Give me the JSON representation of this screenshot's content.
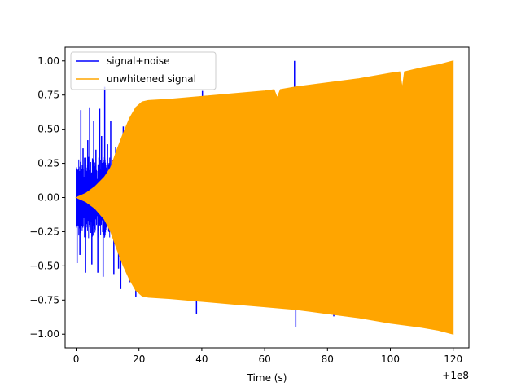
{
  "chart_data": {
    "type": "line",
    "title": "",
    "xlabel": "Time (s)",
    "ylabel": "",
    "x_offset_label": "+1e8",
    "xlim": [
      -3.5,
      125
    ],
    "ylim": [
      -1.1,
      1.1
    ],
    "x_ticks": [
      0,
      20,
      40,
      60,
      80,
      100,
      120
    ],
    "y_ticks": [
      -1.0,
      -0.75,
      -0.5,
      -0.25,
      0.0,
      0.25,
      0.5,
      0.75,
      1.0
    ],
    "x_tick_labels": [
      "0",
      "20",
      "40",
      "60",
      "80",
      "100",
      "120"
    ],
    "y_tick_labels": [
      "−1.00",
      "−0.75",
      "−0.50",
      "−0.25",
      "0.00",
      "0.25",
      "0.50",
      "0.75",
      "1.00"
    ],
    "grid": false,
    "legend": {
      "position": "top-left"
    },
    "series": [
      {
        "name": "signal+noise",
        "color": "#0000ff",
        "spikes": [
          {
            "x": 0.3,
            "y": -0.48
          },
          {
            "x": 0.6,
            "y": 0.18
          },
          {
            "x": 1.2,
            "y": -0.42
          },
          {
            "x": 1.5,
            "y": 0.64
          },
          {
            "x": 2.2,
            "y": 0.36
          },
          {
            "x": 3.0,
            "y": -0.55
          },
          {
            "x": 3.7,
            "y": 0.42
          },
          {
            "x": 4.3,
            "y": 0.66
          },
          {
            "x": 5.0,
            "y": -0.49
          },
          {
            "x": 5.6,
            "y": 0.56
          },
          {
            "x": 6.3,
            "y": 0.35
          },
          {
            "x": 6.9,
            "y": -0.55
          },
          {
            "x": 7.5,
            "y": 0.65
          },
          {
            "x": 8.1,
            "y": 0.45
          },
          {
            "x": 8.6,
            "y": -0.58
          },
          {
            "x": 9.1,
            "y": 0.81
          },
          {
            "x": 10.0,
            "y": 0.39
          },
          {
            "x": 11.0,
            "y": 0.56
          },
          {
            "x": 12.0,
            "y": -0.56
          },
          {
            "x": 12.6,
            "y": 0.37
          },
          {
            "x": 13.5,
            "y": -0.52
          },
          {
            "x": 14.2,
            "y": -0.67
          },
          {
            "x": 15.0,
            "y": 0.52
          },
          {
            "x": 16.0,
            "y": 0.47
          },
          {
            "x": 17.0,
            "y": -0.62
          },
          {
            "x": 18.0,
            "y": 0.45
          },
          {
            "x": 19.0,
            "y": -0.73
          },
          {
            "x": 38.3,
            "y": -0.85
          },
          {
            "x": 40.2,
            "y": 0.78
          },
          {
            "x": 69.5,
            "y": 1.0
          },
          {
            "x": 69.9,
            "y": -0.95
          },
          {
            "x": 82.0,
            "y": -0.87
          }
        ],
        "noise_band": {
          "x_start": 0,
          "x_end": 12,
          "amplitude": 0.3
        }
      },
      {
        "name": "unwhitened signal",
        "color": "#ffa500",
        "envelope_upper": [
          {
            "x": 0,
            "y": 0.0
          },
          {
            "x": 3,
            "y": 0.03
          },
          {
            "x": 6,
            "y": 0.08
          },
          {
            "x": 9,
            "y": 0.15
          },
          {
            "x": 11,
            "y": 0.22
          },
          {
            "x": 13,
            "y": 0.35
          },
          {
            "x": 15,
            "y": 0.47
          },
          {
            "x": 17,
            "y": 0.58
          },
          {
            "x": 19,
            "y": 0.66
          },
          {
            "x": 21,
            "y": 0.7
          },
          {
            "x": 23,
            "y": 0.71
          },
          {
            "x": 30,
            "y": 0.72
          },
          {
            "x": 40,
            "y": 0.74
          },
          {
            "x": 50,
            "y": 0.76
          },
          {
            "x": 60,
            "y": 0.78
          },
          {
            "x": 63,
            "y": 0.79
          },
          {
            "x": 64,
            "y": 0.73
          },
          {
            "x": 65,
            "y": 0.79
          },
          {
            "x": 70,
            "y": 0.81
          },
          {
            "x": 80,
            "y": 0.84
          },
          {
            "x": 90,
            "y": 0.87
          },
          {
            "x": 100,
            "y": 0.91
          },
          {
            "x": 103,
            "y": 0.92
          },
          {
            "x": 103.8,
            "y": 0.8
          },
          {
            "x": 104.5,
            "y": 0.92
          },
          {
            "x": 110,
            "y": 0.95
          },
          {
            "x": 115,
            "y": 0.97
          },
          {
            "x": 120,
            "y": 1.0
          }
        ],
        "envelope_lower": [
          {
            "x": 0,
            "y": 0.0
          },
          {
            "x": 3,
            "y": -0.03
          },
          {
            "x": 6,
            "y": -0.08
          },
          {
            "x": 9,
            "y": -0.16
          },
          {
            "x": 11,
            "y": -0.25
          },
          {
            "x": 13,
            "y": -0.38
          },
          {
            "x": 15,
            "y": -0.5
          },
          {
            "x": 17,
            "y": -0.6
          },
          {
            "x": 19,
            "y": -0.68
          },
          {
            "x": 21,
            "y": -0.72
          },
          {
            "x": 23,
            "y": -0.73
          },
          {
            "x": 30,
            "y": -0.74
          },
          {
            "x": 40,
            "y": -0.76
          },
          {
            "x": 50,
            "y": -0.78
          },
          {
            "x": 60,
            "y": -0.8
          },
          {
            "x": 70,
            "y": -0.82
          },
          {
            "x": 80,
            "y": -0.85
          },
          {
            "x": 90,
            "y": -0.88
          },
          {
            "x": 100,
            "y": -0.92
          },
          {
            "x": 110,
            "y": -0.95
          },
          {
            "x": 115,
            "y": -0.97
          },
          {
            "x": 120,
            "y": -1.0
          }
        ]
      }
    ]
  }
}
